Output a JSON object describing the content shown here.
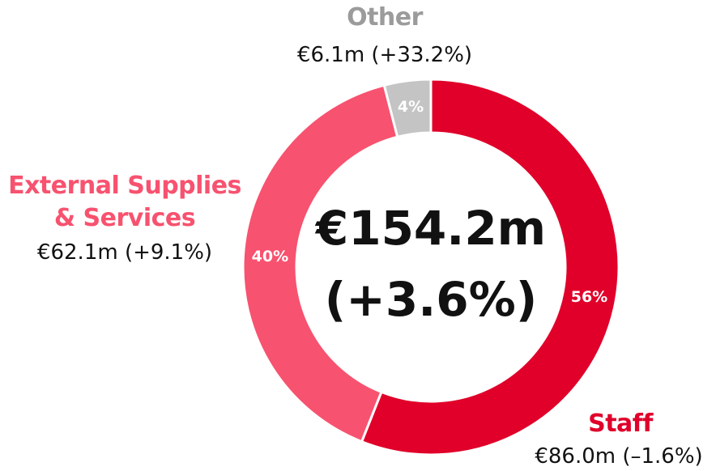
{
  "chart_data": {
    "type": "donut",
    "categories": [
      "Staff",
      "External Supplies & Services",
      "Other"
    ],
    "values": [
      56,
      40,
      4
    ],
    "value_labels": [
      "56%",
      "40%",
      "4%"
    ],
    "colors": [
      "#e0002a",
      "#f7526f",
      "#c4c4c4"
    ],
    "label_colors": [
      "#e0002a",
      "#f7526f",
      "#9b9b9b"
    ],
    "annotations": [
      "€86.0m (–1.6%)",
      "€62.1m (+9.1%)",
      "€6.1m (+33.2%)"
    ],
    "center_text": [
      "€154.2m",
      "(+3.6%)"
    ]
  }
}
